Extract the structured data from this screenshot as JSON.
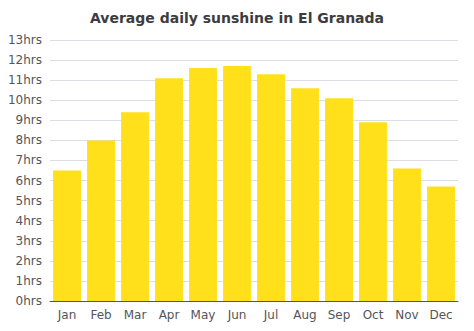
{
  "chart_data": {
    "type": "bar",
    "title": "Average daily sunshine in El Granada",
    "categories": [
      "Jan",
      "Feb",
      "Mar",
      "Apr",
      "May",
      "Jun",
      "Jul",
      "Aug",
      "Sep",
      "Oct",
      "Nov",
      "Dec"
    ],
    "values": [
      6.5,
      8.0,
      9.4,
      11.1,
      11.6,
      11.7,
      11.3,
      10.6,
      10.1,
      8.9,
      6.6,
      5.7
    ],
    "color": "#FFE01A",
    "ylim": [
      0,
      13
    ],
    "yticks": [
      {
        "value": 0,
        "label": "0hrs"
      },
      {
        "value": 1,
        "label": "1hrs"
      },
      {
        "value": 2,
        "label": "2hrs"
      },
      {
        "value": 3,
        "label": "3hrs"
      },
      {
        "value": 4,
        "label": "4hrs"
      },
      {
        "value": 5,
        "label": "5hrs"
      },
      {
        "value": 6,
        "label": "6hrs"
      },
      {
        "value": 7,
        "label": "7hrs"
      },
      {
        "value": 8,
        "label": "8hrs"
      },
      {
        "value": 9,
        "label": "9hrs"
      },
      {
        "value": 10,
        "label": "10hrs"
      },
      {
        "value": 11,
        "label": "11hrs"
      },
      {
        "value": 12,
        "label": "12hrs"
      },
      {
        "value": 13,
        "label": "13hrs"
      }
    ],
    "grid": true
  }
}
